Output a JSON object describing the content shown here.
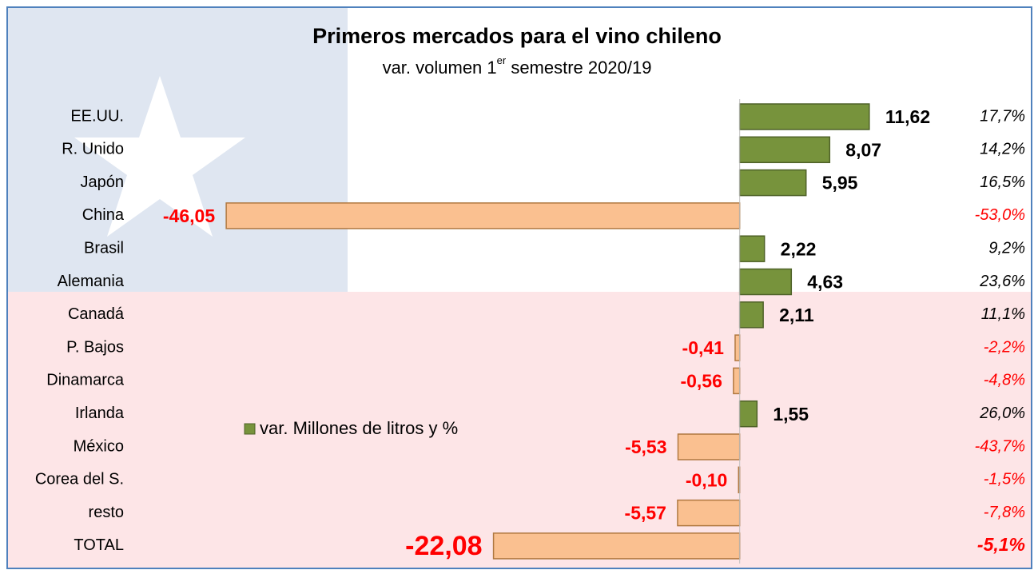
{
  "chart_data": {
    "type": "bar",
    "orientation": "horizontal",
    "title": "Primeros mercados para el vino chileno",
    "subtitle": {
      "text": "var. volumen 1",
      "superscript": "er",
      "rest": " semestre 2020/19"
    },
    "categories": [
      "EE.UU.",
      "R. Unido",
      "Japón",
      "China",
      "Brasil",
      "Alemania",
      "Canadá",
      "P. Bajos",
      "Dinamarca",
      "Irlanda",
      "México",
      "Corea del S.",
      "resto",
      "TOTAL"
    ],
    "series": [
      {
        "name": "var. Millones de litros y %",
        "values": [
          11.62,
          8.07,
          5.95,
          -46.05,
          2.22,
          4.63,
          2.11,
          -0.41,
          -0.56,
          1.55,
          -5.53,
          -0.1,
          -5.57,
          -22.08
        ],
        "value_labels": [
          "11,62",
          "8,07",
          "5,95",
          "-46,05",
          "2,22",
          "4,63",
          "2,11",
          "-0,41",
          "-0,56",
          "1,55",
          "-5,53",
          "-0,10",
          "-5,57",
          "-22,08"
        ]
      }
    ],
    "percent_change": {
      "values": [
        17.7,
        14.2,
        16.5,
        -53.0,
        9.2,
        23.6,
        11.1,
        -2.2,
        -4.8,
        26.0,
        -43.7,
        -1.5,
        -7.8,
        -5.1
      ],
      "value_labels": [
        "17,7%",
        "14,2%",
        "16,5%",
        "-53,0%",
        "9,2%",
        "23,6%",
        "11,1%",
        "-2,2%",
        "-4,8%",
        "26,0%",
        "-43,7%",
        "-1,5%",
        "-7,8%",
        "-5,1%"
      ]
    },
    "positive_color": "#77933c",
    "negative_color": "#fac090",
    "xlim": [
      -50,
      15
    ]
  }
}
